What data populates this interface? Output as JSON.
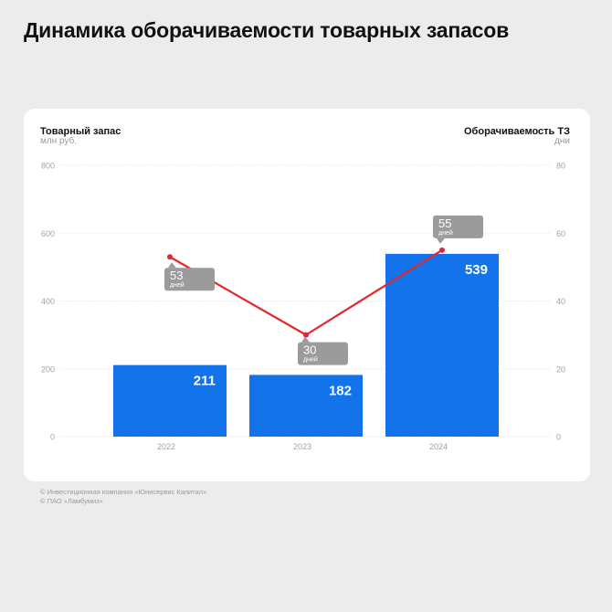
{
  "title": "Динамика оборачиваемости товарных запасов",
  "left_axis": {
    "title": "Товарный запас",
    "unit": "млн руб."
  },
  "right_axis": {
    "title": "Оборачиваемость ТЗ",
    "unit": "дни"
  },
  "footer": {
    "line1": "© Инвестиционная компания «Юнисервис Капитал»",
    "line2": "© ПАО «Ламбумиз»"
  },
  "colors": {
    "bar": "#1273eb",
    "line": "#e0282e",
    "callout": "#9b9b9b"
  },
  "chart_data": {
    "type": "bar",
    "categories": [
      "2022",
      "2023",
      "2024"
    ],
    "series": [
      {
        "name": "Товарный запас",
        "type": "bar",
        "axis": "left",
        "values": [
          211,
          182,
          539
        ]
      },
      {
        "name": "Оборачиваемость ТЗ",
        "type": "line",
        "axis": "right",
        "values": [
          53,
          30,
          55
        ],
        "label_unit": "дней"
      }
    ],
    "y_left": {
      "min": 0,
      "max": 800,
      "ticks": [
        0,
        200,
        400,
        600,
        800
      ]
    },
    "y_right": {
      "min": 0,
      "max": 80,
      "ticks": [
        0,
        20,
        40,
        60,
        80
      ]
    },
    "grid": true
  }
}
